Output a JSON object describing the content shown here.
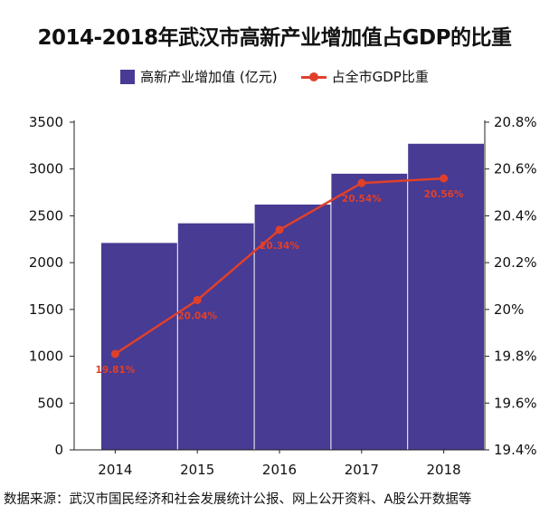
{
  "title": "2014-2018年武汉市高新产业增加值占GDP的比重",
  "source": "数据来源：武汉市国民经济和社会发展统计公报、网上公开资料、A股公开数据等",
  "colors": {
    "bar": "#473b93",
    "line": "#e0402a",
    "axis": "#222222"
  },
  "chart_data": {
    "type": "bar+line",
    "categories": [
      "2014",
      "2015",
      "2016",
      "2017",
      "2018"
    ],
    "series": [
      {
        "name": "高新产业增加值 (亿元)",
        "type": "bar",
        "axis": "left",
        "values": [
          2210,
          2420,
          2620,
          2950,
          3270
        ]
      },
      {
        "name": "占全市GDP比重",
        "type": "line",
        "axis": "right",
        "values": [
          19.81,
          20.04,
          20.34,
          20.54,
          20.56
        ],
        "labels": [
          "19.81%",
          "20.04%",
          "20.34%",
          "20.54%",
          "20.56%"
        ]
      }
    ],
    "y_left": {
      "range": [
        0,
        3500
      ],
      "ticks": [
        "0",
        "500",
        "1000",
        "1500",
        "2000",
        "2500",
        "3000",
        "3500"
      ]
    },
    "y_right": {
      "range": [
        19.4,
        20.8
      ],
      "ticks": [
        "19.4%",
        "19.6%",
        "19.8%",
        "20%",
        "20.2%",
        "20.4%",
        "20.6%",
        "20.8%"
      ]
    },
    "grid": false,
    "legend": "top-center"
  }
}
